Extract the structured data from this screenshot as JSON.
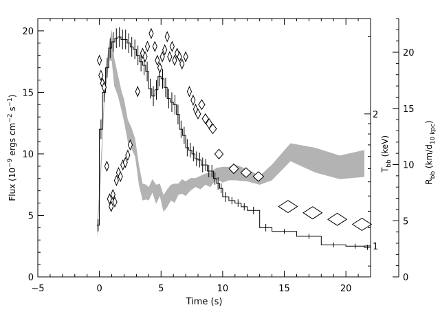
{
  "chart_data": {
    "type": "line",
    "xlabel": "Time (s)",
    "xlim": [
      -5,
      22
    ],
    "x_ticks": [
      "−5",
      "0",
      "5",
      "10",
      "15",
      "20"
    ],
    "axes": {
      "flux": {
        "label": "Flux (10⁻⁹ ergs cm⁻² s⁻¹)",
        "ylim": [
          0,
          21
        ],
        "ticks": [
          "0",
          "5",
          "10",
          "15",
          "20"
        ]
      },
      "tbb": {
        "label": "T_bb (keV)",
        "scale": "log",
        "range": [
          0.85,
          3.3
        ],
        "ticks": [
          "1",
          "2"
        ]
      },
      "rbb": {
        "label": "R_bb (km/d_10 kpc)",
        "ylim": [
          0,
          23
        ],
        "ticks": [
          "0",
          "5",
          "10",
          "15",
          "20"
        ]
      }
    },
    "series": [
      {
        "kind": "flux-histogram",
        "axis": "flux",
        "color": "#000000",
        "x": [
          -0.2,
          0.0,
          0.25,
          0.5,
          0.75,
          1.0,
          1.25,
          1.5,
          1.75,
          2.0,
          2.25,
          2.5,
          2.75,
          3.0,
          3.25,
          3.5,
          3.75,
          4.0,
          4.25,
          4.5,
          4.75,
          5.0,
          5.25,
          5.5,
          5.75,
          6.0,
          6.25,
          6.5,
          6.75,
          7.0,
          7.25,
          7.5,
          7.75,
          8.0,
          8.25,
          8.5,
          8.75,
          9.0,
          9.25,
          9.5,
          9.75,
          10.0,
          10.5,
          11.0,
          11.5,
          12.0,
          13.0,
          14.0,
          16.0,
          18.0,
          20.0,
          21.5
        ],
        "y": [
          4.2,
          12.0,
          15.0,
          17.0,
          18.6,
          19.1,
          19.4,
          19.5,
          19.3,
          19.3,
          19.0,
          18.7,
          18.5,
          18.0,
          17.5,
          17.2,
          16.7,
          15.3,
          14.7,
          15.2,
          16.3,
          16.1,
          15.4,
          14.5,
          14.2,
          14.0,
          13.2,
          12.0,
          11.5,
          10.5,
          10.3,
          10.0,
          9.6,
          9.5,
          9.1,
          9.1,
          8.6,
          8.6,
          8.0,
          7.6,
          7.2,
          6.5,
          6.2,
          6.0,
          5.7,
          5.4,
          4.0,
          3.7,
          3.3,
          2.6,
          2.5,
          2.4
        ],
        "err": [
          0.5,
          0.8,
          0.8,
          0.8,
          0.8,
          0.8,
          0.8,
          0.8,
          0.8,
          0.8,
          0.8,
          0.8,
          0.8,
          0.8,
          0.8,
          0.8,
          0.8,
          0.8,
          0.8,
          0.8,
          0.8,
          0.8,
          0.8,
          0.8,
          0.8,
          0.8,
          0.8,
          0.7,
          0.7,
          0.7,
          0.6,
          0.6,
          0.6,
          0.6,
          0.6,
          0.5,
          0.5,
          0.5,
          0.5,
          0.5,
          0.4,
          0.4,
          0.3,
          0.3,
          0.3,
          0.3,
          0.3,
          0.2,
          0.2,
          0.2,
          0.2,
          0.2
        ]
      },
      {
        "kind": "tbb-diamonds",
        "axis": "tbb",
        "color": "#000000",
        "x": [
          0.0,
          0.12,
          0.25,
          0.38,
          0.6,
          0.82,
          0.95,
          1.1,
          1.25,
          1.38,
          1.55,
          1.7,
          1.9,
          2.1,
          2.3,
          2.5,
          3.1,
          3.5,
          3.7,
          3.9,
          4.2,
          4.5,
          4.7,
          4.9,
          5.1,
          5.3,
          5.5,
          5.7,
          5.9,
          6.1,
          6.3,
          6.5,
          6.7,
          7.0,
          7.3,
          7.6,
          7.8,
          8.0,
          8.3,
          8.6,
          8.9,
          9.2,
          9.7,
          10.9,
          11.9,
          12.9,
          15.3,
          17.3,
          19.3,
          21.3
        ],
        "y": [
          2.65,
          2.45,
          2.35,
          2.3,
          1.52,
          1.28,
          1.23,
          1.31,
          1.26,
          1.41,
          1.47,
          1.44,
          1.53,
          1.55,
          1.61,
          1.7,
          2.25,
          2.75,
          2.7,
          2.85,
          3.05,
          2.85,
          2.65,
          2.55,
          2.7,
          2.8,
          3.0,
          2.7,
          2.85,
          2.65,
          2.75,
          2.7,
          2.6,
          2.7,
          2.25,
          2.15,
          2.05,
          2.0,
          2.1,
          1.95,
          1.9,
          1.85,
          1.62,
          1.5,
          1.47,
          1.44,
          1.23,
          1.19,
          1.15,
          1.12
        ],
        "size": [
          0.2,
          0.2,
          0.2,
          0.2,
          0.2,
          0.2,
          0.2,
          0.2,
          0.2,
          0.2,
          0.2,
          0.2,
          0.2,
          0.2,
          0.2,
          0.2,
          0.2,
          0.2,
          0.2,
          0.2,
          0.2,
          0.2,
          0.2,
          0.2,
          0.2,
          0.2,
          0.2,
          0.2,
          0.2,
          0.2,
          0.2,
          0.2,
          0.2,
          0.2,
          0.2,
          0.2,
          0.2,
          0.25,
          0.3,
          0.3,
          0.3,
          0.35,
          0.4,
          0.45,
          0.5,
          0.5,
          0.9,
          0.9,
          0.9,
          0.9
        ]
      },
      {
        "kind": "rbb-band",
        "axis": "rbb",
        "color": "#b3b3b3",
        "x": [
          -0.2,
          0.0,
          0.2,
          0.4,
          0.6,
          0.8,
          1.0,
          1.2,
          1.5,
          1.8,
          2.0,
          2.3,
          2.6,
          2.9,
          3.2,
          3.5,
          3.8,
          4.0,
          4.3,
          4.6,
          4.9,
          5.2,
          5.5,
          5.8,
          6.1,
          6.4,
          6.7,
          7.0,
          7.4,
          7.8,
          8.2,
          8.6,
          9.0,
          9.5,
          10.0,
          10.5,
          11.0,
          12.0,
          13.0,
          14.0,
          15.5,
          17.5,
          19.5,
          21.5
        ],
        "lo": [
          3.5,
          6.5,
          10.5,
          15.5,
          17.5,
          19.3,
          19.2,
          17.0,
          16.1,
          14.8,
          13.8,
          12.0,
          11.4,
          10.7,
          8.2,
          6.8,
          6.9,
          6.8,
          7.5,
          6.5,
          7.2,
          5.8,
          6.2,
          6.8,
          6.6,
          7.3,
          7.4,
          7.2,
          7.7,
          8.0,
          7.8,
          8.2,
          8.0,
          8.7,
          8.4,
          8.6,
          8.6,
          8.5,
          8.2,
          8.6,
          10.3,
          9.3,
          8.7,
          8.9
        ],
        "hi": [
          4.5,
          8.0,
          12.0,
          17.0,
          19.3,
          20.9,
          22.0,
          19.5,
          18.0,
          16.5,
          15.8,
          14.0,
          13.3,
          12.3,
          10.0,
          8.3,
          8.2,
          8.0,
          8.7,
          8.2,
          8.3,
          7.3,
          7.8,
          8.2,
          8.3,
          8.3,
          8.7,
          8.5,
          8.8,
          8.8,
          9.0,
          9.2,
          9.3,
          9.7,
          9.8,
          9.8,
          10.0,
          9.6,
          9.0,
          10.0,
          11.9,
          11.5,
          10.8,
          11.3
        ]
      }
    ]
  }
}
